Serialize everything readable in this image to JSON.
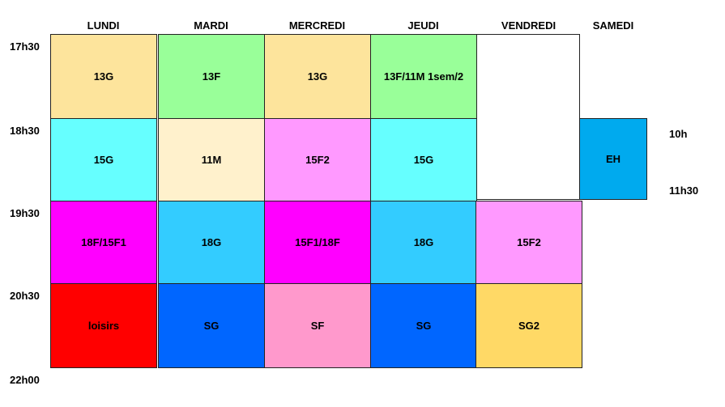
{
  "days": [
    "LUNDI",
    "MARDI",
    "MERCREDI",
    "JEUDI",
    "VENDREDI",
    "SAMEDI"
  ],
  "times": [
    "17h30",
    "18h30",
    "19h30",
    "20h30",
    "22h00"
  ],
  "rows": [
    [
      {
        "label": "13G",
        "color": "#fde49c"
      },
      {
        "label": "13F",
        "color": "#99ff99"
      },
      {
        "label": "13G",
        "color": "#fde49c"
      },
      {
        "label": "13F/11M 1sem/2",
        "color": "#99ff99"
      }
    ],
    [
      {
        "label": "15G",
        "color": "#66ffff"
      },
      {
        "label": "11M",
        "color": "#fff1cc"
      },
      {
        "label": "15F2",
        "color": "#ff99ff"
      },
      {
        "label": "15G",
        "color": "#66ffff"
      }
    ],
    [
      {
        "label": "18F/15F1",
        "color": "#ff00ff"
      },
      {
        "label": "18G",
        "color": "#33ccff"
      },
      {
        "label": "15F1/18F",
        "color": "#ff00ff"
      },
      {
        "label": "18G",
        "color": "#33ccff"
      },
      {
        "label": "15F2",
        "color": "#ff99ff"
      }
    ],
    [
      {
        "label": "loisirs",
        "color": "#ff0000"
      },
      {
        "label": "SG",
        "color": "#0066ff"
      },
      {
        "label": "SF",
        "color": "#ff99cc"
      },
      {
        "label": "SG",
        "color": "#0066ff"
      },
      {
        "label": "SG2",
        "color": "#ffd966"
      }
    ]
  ],
  "saturday": {
    "label": "EH",
    "color": "#00aaee",
    "start": "10h",
    "end": "11h30"
  }
}
